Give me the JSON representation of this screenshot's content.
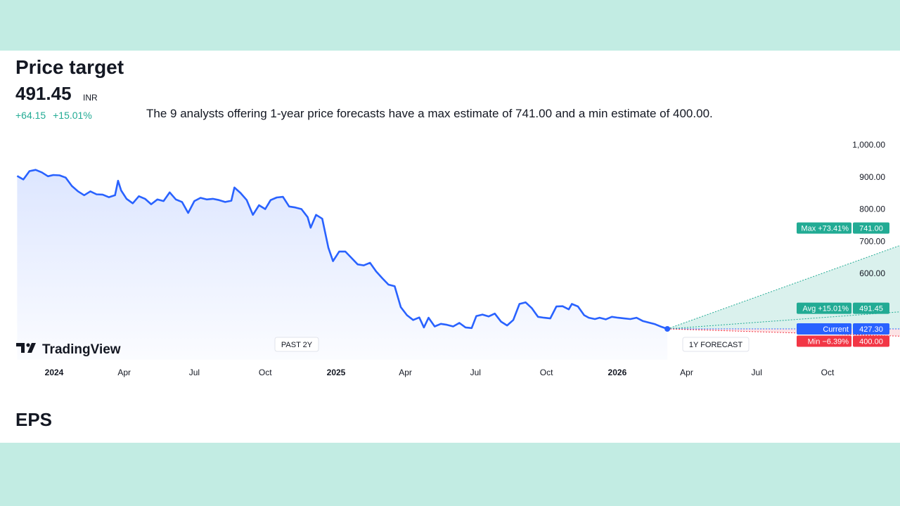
{
  "header": {
    "title": "Price target",
    "price": "491.45",
    "currency": "INR",
    "change_abs": "+64.15",
    "change_pct": "+15.01%",
    "description": "The 9 analysts offering 1-year price forecasts have a max estimate of 741.00 and a min estimate of 400.00."
  },
  "footer": {
    "next_section": "EPS"
  },
  "brand": {
    "name": "TradingView",
    "logo_icon": "tradingview-logo-icon"
  },
  "colors": {
    "line": "#2962ff",
    "max": "#22ab94",
    "avg": "#22ab94",
    "current": "#2962ff",
    "min": "#f23645",
    "positive": "#22ab94"
  },
  "chart_data": {
    "type": "line",
    "ylim": [
      400,
      1000
    ],
    "yticks": [
      {
        "value": 1000,
        "label": "1,000.00"
      },
      {
        "value": 900,
        "label": "900.00"
      },
      {
        "value": 800,
        "label": "800.00"
      },
      {
        "value": 700,
        "label": "700.00"
      },
      {
        "value": 600,
        "label": "600.00"
      }
    ],
    "xticks": [
      {
        "date": "2024-01-01",
        "label": "2024",
        "bold": true
      },
      {
        "date": "2024-04-01",
        "label": "Apr",
        "bold": false
      },
      {
        "date": "2024-07-01",
        "label": "Jul",
        "bold": false
      },
      {
        "date": "2024-10-01",
        "label": "Oct",
        "bold": false
      },
      {
        "date": "2025-01-01",
        "label": "2025",
        "bold": true
      },
      {
        "date": "2025-04-01",
        "label": "Apr",
        "bold": false
      },
      {
        "date": "2025-07-01",
        "label": "Jul",
        "bold": false
      },
      {
        "date": "2025-10-01",
        "label": "Oct",
        "bold": false
      },
      {
        "date": "2026-01-01",
        "label": "2026",
        "bold": true
      },
      {
        "date": "2026-04-01",
        "label": "Apr",
        "bold": false
      },
      {
        "date": "2026-07-01",
        "label": "Jul",
        "bold": false
      },
      {
        "date": "2026-10-01",
        "label": "Oct",
        "bold": false
      }
    ],
    "period_labels": {
      "past": "PAST 2Y",
      "forecast": "1Y FORECAST"
    },
    "price_series": {
      "name": "",
      "points": [
        [
          "2023-11-14",
          903
        ],
        [
          "2023-11-22",
          892
        ],
        [
          "2023-11-30",
          918
        ],
        [
          "2023-12-08",
          922
        ],
        [
          "2023-12-16",
          914
        ],
        [
          "2023-12-24",
          902
        ],
        [
          "2023-12-31",
          906
        ],
        [
          "2024-01-08",
          905
        ],
        [
          "2024-01-16",
          898
        ],
        [
          "2024-01-24",
          872
        ],
        [
          "2024-02-01",
          855
        ],
        [
          "2024-02-09",
          843
        ],
        [
          "2024-02-17",
          855
        ],
        [
          "2024-02-25",
          846
        ],
        [
          "2024-03-04",
          845
        ],
        [
          "2024-03-12",
          837
        ],
        [
          "2024-03-20",
          843
        ],
        [
          "2024-03-24",
          888
        ],
        [
          "2024-03-28",
          858
        ],
        [
          "2024-04-04",
          832
        ],
        [
          "2024-04-12",
          818
        ],
        [
          "2024-04-20",
          840
        ],
        [
          "2024-04-28",
          832
        ],
        [
          "2024-05-06",
          815
        ],
        [
          "2024-05-14",
          830
        ],
        [
          "2024-05-22",
          825
        ],
        [
          "2024-05-30",
          852
        ],
        [
          "2024-06-07",
          830
        ],
        [
          "2024-06-15",
          822
        ],
        [
          "2024-06-23",
          788
        ],
        [
          "2024-07-01",
          825
        ],
        [
          "2024-07-09",
          835
        ],
        [
          "2024-07-17",
          830
        ],
        [
          "2024-07-25",
          832
        ],
        [
          "2024-08-02",
          828
        ],
        [
          "2024-08-10",
          822
        ],
        [
          "2024-08-18",
          826
        ],
        [
          "2024-08-22",
          867
        ],
        [
          "2024-08-30",
          850
        ],
        [
          "2024-09-07",
          828
        ],
        [
          "2024-09-15",
          782
        ],
        [
          "2024-09-23",
          812
        ],
        [
          "2024-09-31",
          800
        ],
        [
          "2024-10-08",
          828
        ],
        [
          "2024-10-16",
          836
        ],
        [
          "2024-10-24",
          838
        ],
        [
          "2024-11-01",
          808
        ],
        [
          "2024-11-09",
          805
        ],
        [
          "2024-11-17",
          800
        ],
        [
          "2024-11-25",
          775
        ],
        [
          "2024-11-29",
          742
        ],
        [
          "2024-12-06",
          782
        ],
        [
          "2024-12-14",
          770
        ],
        [
          "2024-12-22",
          680
        ],
        [
          "2024-12-28",
          638
        ],
        [
          "2025-01-05",
          668
        ],
        [
          "2025-01-13",
          668
        ],
        [
          "2025-01-21",
          648
        ],
        [
          "2025-01-29",
          628
        ],
        [
          "2025-02-06",
          625
        ],
        [
          "2025-02-14",
          633
        ],
        [
          "2025-02-22",
          606
        ],
        [
          "2025-03-02",
          585
        ],
        [
          "2025-03-10",
          565
        ],
        [
          "2025-03-18",
          560
        ],
        [
          "2025-03-26",
          495
        ],
        [
          "2025-04-03",
          470
        ],
        [
          "2025-04-11",
          455
        ],
        [
          "2025-04-19",
          463
        ],
        [
          "2025-04-25",
          432
        ],
        [
          "2025-05-01",
          462
        ],
        [
          "2025-05-09",
          435
        ],
        [
          "2025-05-17",
          443
        ],
        [
          "2025-05-25",
          440
        ],
        [
          "2025-06-02",
          435
        ],
        [
          "2025-06-10",
          446
        ],
        [
          "2025-06-18",
          432
        ],
        [
          "2025-06-26",
          430
        ],
        [
          "2025-07-02",
          467
        ],
        [
          "2025-07-10",
          472
        ],
        [
          "2025-07-18",
          466
        ],
        [
          "2025-07-26",
          475
        ],
        [
          "2025-08-03",
          450
        ],
        [
          "2025-08-11",
          438
        ],
        [
          "2025-08-19",
          455
        ],
        [
          "2025-08-27",
          505
        ],
        [
          "2025-09-04",
          510
        ],
        [
          "2025-09-12",
          492
        ],
        [
          "2025-09-20",
          465
        ],
        [
          "2025-09-28",
          462
        ],
        [
          "2025-10-06",
          460
        ],
        [
          "2025-10-14",
          497
        ],
        [
          "2025-10-22",
          498
        ],
        [
          "2025-10-30",
          488
        ],
        [
          "2025-11-03",
          505
        ],
        [
          "2025-11-11",
          497
        ],
        [
          "2025-11-19",
          470
        ],
        [
          "2025-11-25",
          462
        ],
        [
          "2025-12-03",
          458
        ],
        [
          "2025-12-09",
          462
        ],
        [
          "2025-12-17",
          457
        ],
        [
          "2025-12-25",
          465
        ],
        [
          "2026-01-02",
          462
        ],
        [
          "2026-01-10",
          460
        ],
        [
          "2026-01-18",
          458
        ],
        [
          "2026-01-26",
          462
        ],
        [
          "2026-02-03",
          452
        ],
        [
          "2026-02-11",
          447
        ],
        [
          "2026-02-19",
          442
        ],
        [
          "2026-02-27",
          434
        ],
        [
          "2026-03-07",
          427.3
        ]
      ]
    },
    "forecast": {
      "start_date": "2026-03-07",
      "end_date": "2027-03-07",
      "current": {
        "value": 427.3,
        "label": "Current",
        "value_label": "427.30"
      },
      "max": {
        "value": 741.0,
        "label": "Max +73.41%",
        "value_label": "741.00"
      },
      "avg": {
        "value": 491.45,
        "label": "Avg +15.01%",
        "value_label": "491.45"
      },
      "min": {
        "value": 400.0,
        "label": "Min −6.39%",
        "value_label": "400.00"
      }
    }
  }
}
